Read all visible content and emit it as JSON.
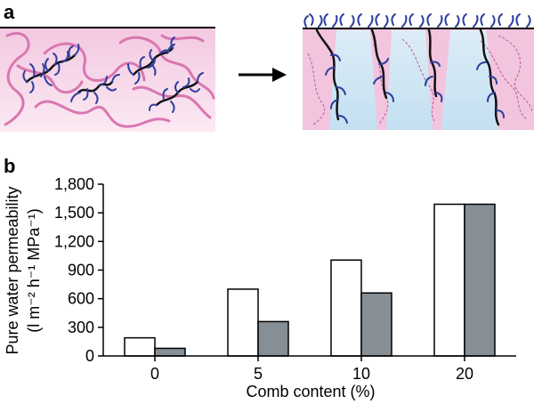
{
  "panels": {
    "a_label": "a",
    "b_label": "b"
  },
  "colors": {
    "series_open": "#ffffff",
    "series_filled": "#868e96",
    "bar_stroke": "#000000",
    "film_pink": "#f2c4de",
    "film_pink_light": "#f9e4ef",
    "pore_blue": "#c8e2f2",
    "chain_pink": "#d977b1",
    "comb_blue": "#2e3f9e",
    "backbone": "#111111"
  },
  "chart_data": {
    "type": "bar",
    "categories": [
      "0",
      "5",
      "10",
      "20"
    ],
    "series": [
      {
        "values": [
          190,
          700,
          1005,
          1590
        ]
      },
      {
        "values": [
          80,
          360,
          660,
          1590
        ]
      }
    ],
    "xlabel": "Comb content (%)",
    "ylabel_line1": "Pure water permeability",
    "ylabel_line2": "(l m⁻² h⁻¹ MPa⁻¹)",
    "ylim": [
      0,
      1800
    ],
    "yticks": [
      0,
      300,
      600,
      900,
      1200,
      1500,
      1800
    ],
    "ytick_labels": [
      "0",
      "300",
      "600",
      "900",
      "1,200",
      "1,500",
      "1,800"
    ],
    "grid": false,
    "legend": "none"
  }
}
